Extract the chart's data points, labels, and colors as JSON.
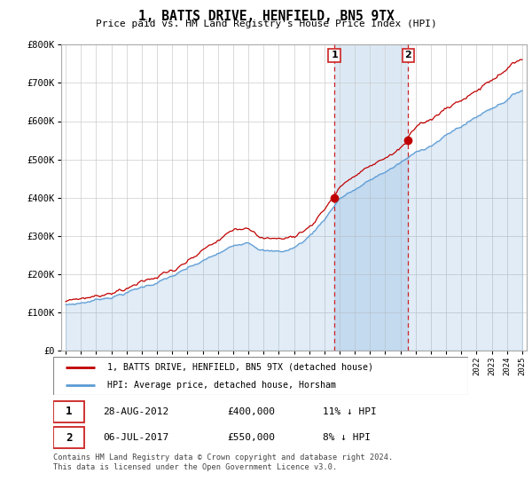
{
  "title": "1, BATTS DRIVE, HENFIELD, BN5 9TX",
  "subtitle": "Price paid vs. HM Land Registry's House Price Index (HPI)",
  "hpi_color": "#5b9bd5",
  "hpi_fill_color": "#dce9f5",
  "price_color": "#c00000",
  "ylim": [
    0,
    800000
  ],
  "yticks": [
    0,
    100000,
    200000,
    300000,
    400000,
    500000,
    600000,
    700000,
    800000
  ],
  "ytick_labels": [
    "£0",
    "£100K",
    "£200K",
    "£300K",
    "£400K",
    "£500K",
    "£600K",
    "£700K",
    "£800K"
  ],
  "transaction1_date": "28-AUG-2012",
  "transaction1_price": 400000,
  "transaction1_year": 2012.66,
  "transaction1_hpi_diff": "11% ↓ HPI",
  "transaction1_label": "1",
  "transaction2_date": "06-JUL-2017",
  "transaction2_price": 550000,
  "transaction2_year": 2017.5,
  "transaction2_hpi_diff": "8% ↓ HPI",
  "transaction2_label": "2",
  "legend_line1": "1, BATTS DRIVE, HENFIELD, BN5 9TX (detached house)",
  "legend_line2": "HPI: Average price, detached house, Horsham",
  "footnote": "Contains HM Land Registry data © Crown copyright and database right 2024.\nThis data is licensed under the Open Government Licence v3.0.",
  "start_year": 1995,
  "end_year": 2025,
  "hpi_seed": 7,
  "price_seed": 99,
  "n_points": 360
}
